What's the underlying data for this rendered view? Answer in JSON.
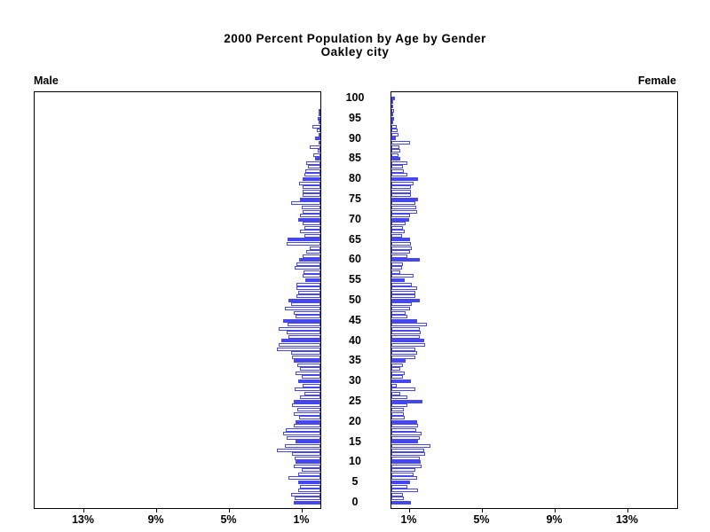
{
  "title": {
    "line1": "2000 Percent Population by Age by Gender",
    "line2": "Oakley city"
  },
  "panels": {
    "male_label": "Male",
    "female_label": "Female"
  },
  "colors": {
    "bar_blue": "#4747EE",
    "axis_black": "#000000",
    "open_bar_fill": "#FFFFFF"
  },
  "chart_data": {
    "type": "bar",
    "subtype": "population-pyramid",
    "title": "2000 Percent Population by Age by Gender",
    "subtitle": "Oakley city",
    "orientation": "horizontal back-to-back; male axis reversed (grows leftward), female grows rightward",
    "age_axis": {
      "label_values": [
        0,
        5,
        10,
        15,
        20,
        25,
        30,
        35,
        40,
        45,
        50,
        55,
        60,
        65,
        70,
        75,
        80,
        85,
        90,
        95,
        100
      ],
      "position": "center between panels",
      "min": 0,
      "max": 100
    },
    "pct_axis": {
      "male_tick_labels": [
        "13%",
        "9%",
        "5%",
        "1%"
      ],
      "female_tick_labels": [
        "1%",
        "5%",
        "9%",
        "13%"
      ],
      "male_tick_values": [
        13,
        9,
        5,
        1
      ],
      "female_tick_values": [
        1,
        5,
        9,
        13
      ],
      "max_pct": 15.7,
      "unit": "percent of population"
    },
    "highlight_rule": "bars at ages divisible by 5 are solid blue; all other ages are white with blue outline",
    "ages": "0 through 100 by 1 (index = age)",
    "series": [
      {
        "name": "Male",
        "values": [
          1.45,
          1.4,
          1.6,
          1.2,
          1.1,
          1.2,
          1.75,
          1.2,
          1.05,
          1.45,
          1.35,
          1.4,
          1.55,
          2.4,
          1.95,
          1.35,
          1.85,
          2.05,
          1.9,
          1.45,
          1.35,
          1.15,
          1.45,
          1.25,
          1.55,
          1.45,
          1.1,
          0.9,
          1.4,
          1.0,
          1.2,
          1.05,
          1.35,
          1.1,
          1.25,
          1.45,
          1.55,
          1.6,
          2.4,
          2.3,
          2.15,
          1.75,
          1.85,
          2.3,
          1.8,
          2.05,
          1.35,
          1.45,
          1.95,
          1.6,
          1.75,
          1.3,
          1.2,
          1.3,
          1.3,
          0.85,
          1.0,
          0.95,
          1.4,
          1.3,
          1.15,
          1.0,
          0.8,
          0.6,
          1.85,
          1.8,
          0.9,
          1.1,
          0.9,
          1.0,
          1.2,
          1.1,
          1.0,
          1.05,
          1.6,
          1.1,
          1.0,
          1.0,
          1.0,
          1.15,
          1.0,
          0.9,
          0.85,
          0.7,
          0.8,
          0.3,
          0.4,
          0.15,
          0.6,
          0.1,
          0.3,
          0.1,
          0.2,
          0.45,
          0.05,
          0.15,
          0.1,
          0.05,
          0,
          0,
          0
        ]
      },
      {
        "name": "Female",
        "values": [
          1.05,
          0.7,
          0.65,
          1.45,
          0.9,
          1.0,
          1.4,
          1.2,
          1.3,
          1.65,
          1.6,
          1.55,
          1.85,
          1.8,
          2.15,
          1.45,
          1.55,
          1.65,
          1.35,
          1.45,
          1.4,
          0.75,
          0.7,
          0.7,
          0.9,
          1.7,
          0.9,
          0.5,
          1.3,
          0.3,
          1.05,
          0.65,
          0.75,
          0.5,
          0.65,
          0.8,
          1.3,
          1.4,
          1.3,
          1.85,
          1.8,
          1.55,
          1.6,
          1.55,
          1.95,
          1.4,
          0.9,
          0.8,
          1.0,
          1.1,
          1.55,
          1.3,
          1.3,
          1.4,
          1.1,
          0.75,
          1.2,
          0.5,
          0.6,
          0.65,
          1.55,
          0.9,
          1.0,
          1.1,
          1.05,
          1.0,
          0.6,
          0.75,
          0.65,
          0.8,
          0.95,
          1.0,
          1.4,
          1.35,
          1.3,
          1.45,
          1.05,
          1.05,
          1.05,
          1.2,
          1.45,
          0.9,
          0.7,
          0.65,
          0.9,
          0.5,
          0.4,
          0.5,
          0.45,
          1.0,
          0.25,
          0.4,
          0.35,
          0.3,
          0.1,
          0.15,
          0.1,
          0.15,
          0.1,
          0.1,
          0.2
        ]
      }
    ]
  }
}
